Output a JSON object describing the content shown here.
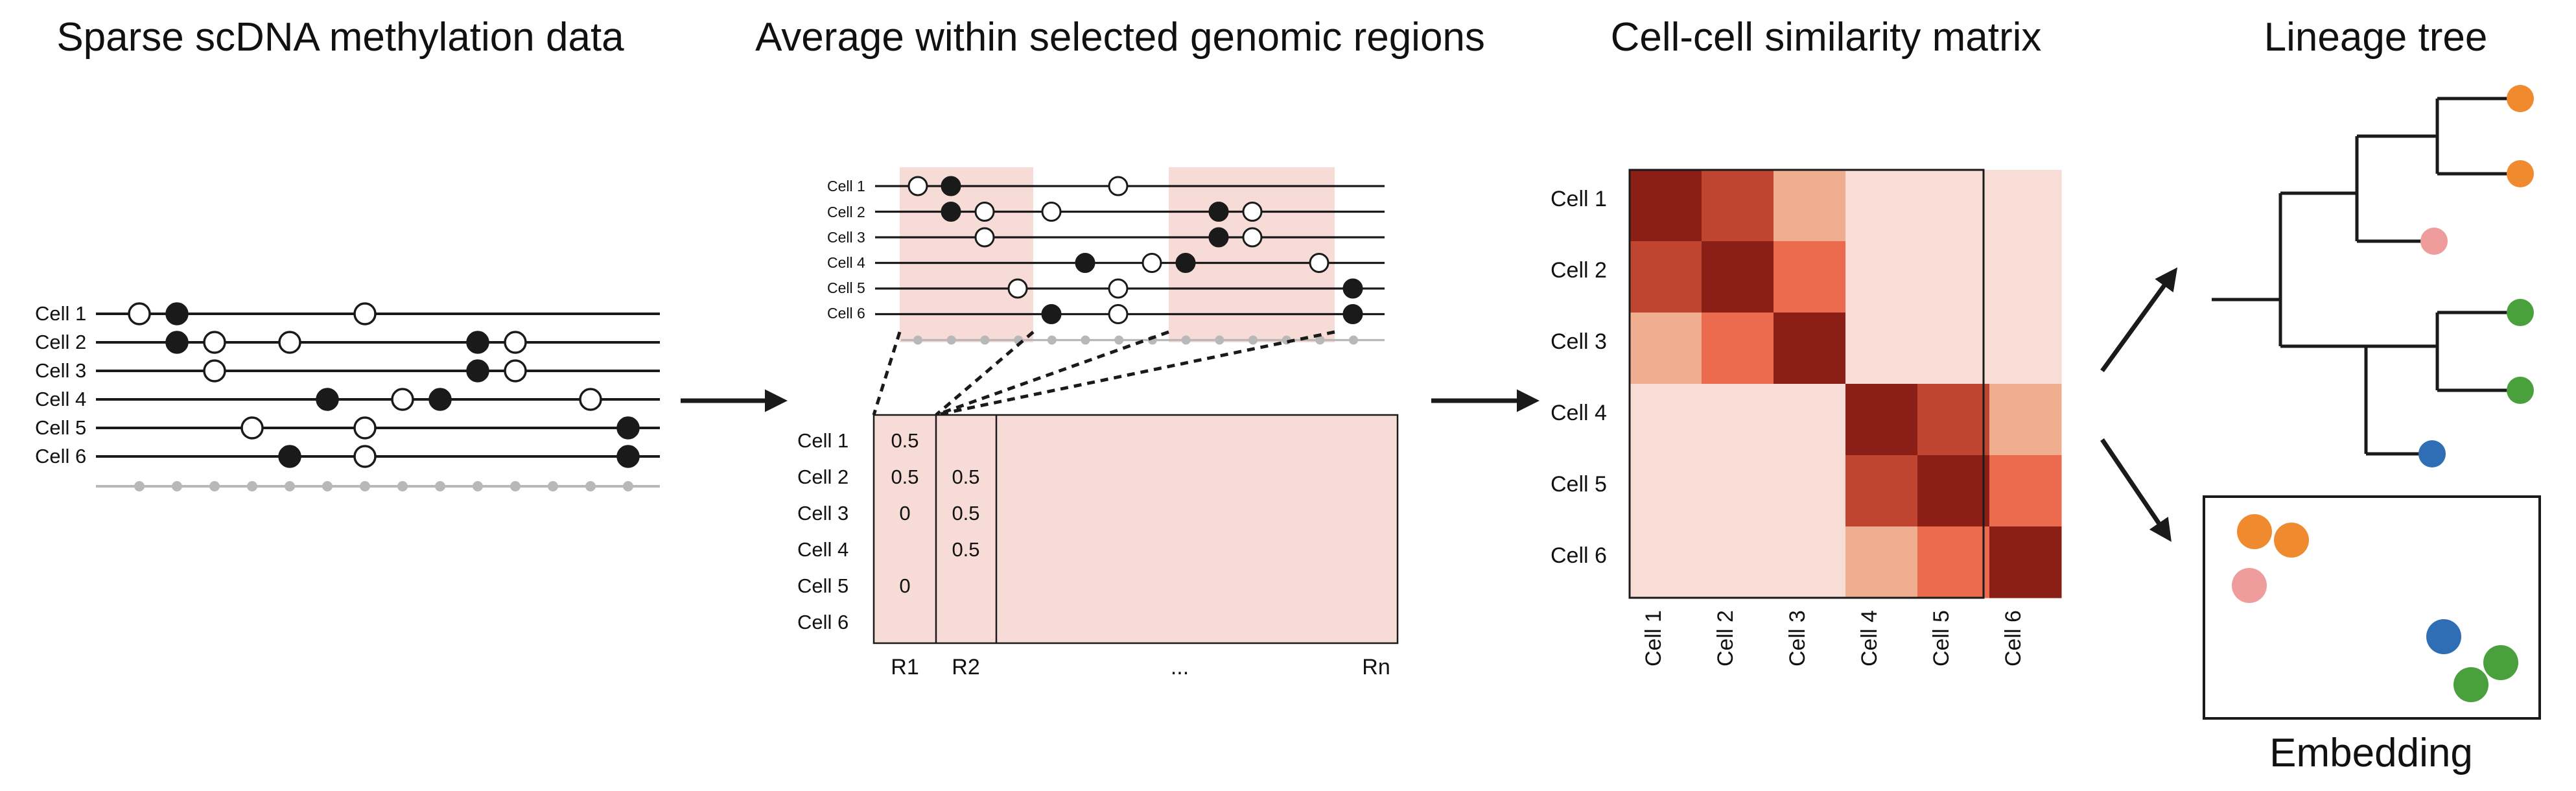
{
  "titles": {
    "panel1": "Sparse scDNA methylation data",
    "panel2": "Average within selected genomic regions",
    "panel3": "Cell-cell similarity matrix",
    "panel4": "Lineage tree",
    "embedding": "Embedding"
  },
  "cells": [
    "Cell 1",
    "Cell 2",
    "Cell 3",
    "Cell 4",
    "Cell 5",
    "Cell 6"
  ],
  "table": {
    "region_labels": [
      "R1",
      "R2",
      "...",
      "Rn"
    ],
    "col_r1": [
      "0.5",
      "0.5",
      "0",
      "",
      "0",
      ""
    ],
    "col_r2": [
      "",
      "0.5",
      "0.5",
      "0.5",
      "",
      ""
    ]
  },
  "matrix": {
    "levels": [
      [
        4,
        3,
        1,
        0,
        0,
        0
      ],
      [
        3,
        4,
        2,
        0,
        0,
        0
      ],
      [
        1,
        2,
        4,
        0,
        0,
        0
      ],
      [
        0,
        0,
        0,
        4,
        3,
        1
      ],
      [
        0,
        0,
        0,
        3,
        4,
        2
      ],
      [
        0,
        0,
        0,
        1,
        2,
        4
      ]
    ],
    "palette": [
      "#f7ddd5",
      "#f0ae90",
      "#ec6a4e",
      "#bf4530",
      "#8b1e17"
    ]
  },
  "colors": {
    "orange": "#f08a2e",
    "pink": "#ee9c9c",
    "green": "#4aa03c",
    "blue": "#2f6db4",
    "region_fill": "#f7dbd6",
    "line": "#1a1a1a",
    "grey": "#b8b8b8"
  }
}
